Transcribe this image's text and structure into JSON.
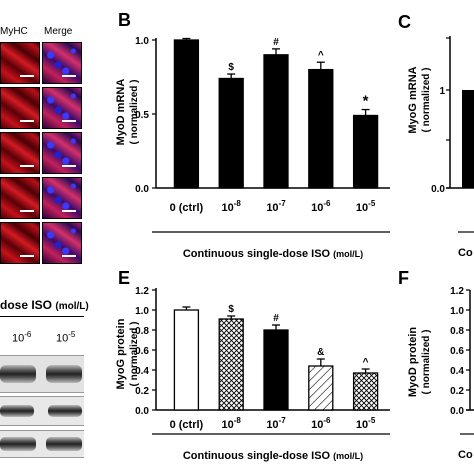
{
  "panelA": {
    "col_myhc": "MyHC",
    "col_merge": "Merge",
    "iso_label": "dose ISO",
    "iso_unit": "(mol/L)",
    "conc_a": "10",
    "conc_a_exp": "-6",
    "conc_b": "10",
    "conc_b_exp": "-5"
  },
  "letters": {
    "B": "B",
    "C": "C",
    "E": "E",
    "F": "F"
  },
  "panelC": {
    "ylabel_top": "MyoG mRNA",
    "ylabel_bottom": "( normalized )",
    "ytick_0": "0.0",
    "ytick_1": "1",
    "xlabel": "Co"
  },
  "panelF": {
    "ylabel_top": "MyoD protein",
    "ylabel_bottom": "( normalized )",
    "yticks": [
      "0.0",
      "0.2",
      "0.4",
      "0.6",
      "0.8",
      "1.0",
      "1.2"
    ],
    "xlabel": "Co"
  },
  "chart_data": [
    {
      "type": "bar",
      "panel": "B",
      "ylabel": [
        "MyoD mRNA",
        "( normalized )"
      ],
      "ylim": [
        0,
        1.0
      ],
      "yticks": [
        "0.0",
        "0.5",
        "1.0"
      ],
      "categories": [
        "0 (ctrl)",
        "10-8",
        "10-7",
        "10-6",
        "10-5"
      ],
      "category_display": [
        {
          "base": "0 (ctrl)",
          "exp": ""
        },
        {
          "base": "10",
          "exp": "-8"
        },
        {
          "base": "10",
          "exp": "-7"
        },
        {
          "base": "10",
          "exp": "-6"
        },
        {
          "base": "10",
          "exp": "-5"
        }
      ],
      "values": [
        1.0,
        0.74,
        0.9,
        0.8,
        0.49
      ],
      "errors": [
        0.01,
        0.03,
        0.04,
        0.05,
        0.04
      ],
      "annotations": [
        "",
        "$",
        "#",
        "^",
        "*"
      ],
      "xlabel": "Continuous single-dose ISO",
      "xlabel_unit": "(mol/L)"
    },
    {
      "type": "bar",
      "panel": "E",
      "ylabel": [
        "MyoG protein",
        "( normalized )"
      ],
      "ylim": [
        0,
        1.2
      ],
      "yticks": [
        "0.0",
        "0.2",
        "0.4",
        "0.6",
        "0.8",
        "1.0",
        "1.2"
      ],
      "categories": [
        "0 (ctrl)",
        "10-8",
        "10-7",
        "10-6",
        "10-5"
      ],
      "category_display": [
        {
          "base": "0 (ctrl)",
          "exp": ""
        },
        {
          "base": "10",
          "exp": "-8"
        },
        {
          "base": "10",
          "exp": "-7"
        },
        {
          "base": "10",
          "exp": "-6"
        },
        {
          "base": "10",
          "exp": "-5"
        }
      ],
      "values": [
        1.0,
        0.91,
        0.8,
        0.44,
        0.37
      ],
      "errors": [
        0.03,
        0.03,
        0.05,
        0.07,
        0.04
      ],
      "annotations": [
        "",
        "$",
        "#",
        "&",
        "^"
      ],
      "fills": [
        "white",
        "crosshatch",
        "black",
        "diagonal",
        "crosshatch"
      ],
      "xlabel": "Continuous single-dose ISO",
      "xlabel_unit": "(mol/L)"
    }
  ]
}
